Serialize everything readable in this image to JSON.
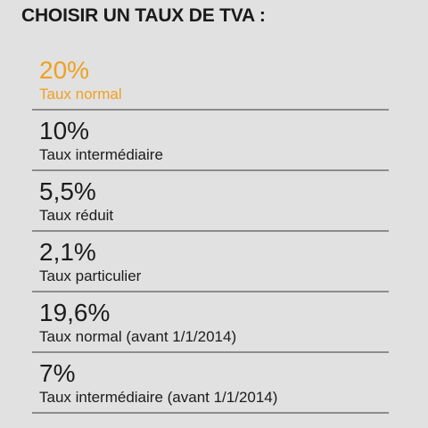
{
  "header": {
    "title": "CHOISIR UN TAUX DE TVA :"
  },
  "accent_color": "#f0a020",
  "rates": [
    {
      "value": "20%",
      "label": "Taux normal",
      "selected": true
    },
    {
      "value": "10%",
      "label": "Taux intermédiaire",
      "selected": false
    },
    {
      "value": "5,5%",
      "label": "Taux réduit",
      "selected": false
    },
    {
      "value": "2,1%",
      "label": "Taux particulier",
      "selected": false
    },
    {
      "value": "19,6%",
      "label": "Taux normal (avant 1/1/2014)",
      "selected": false
    },
    {
      "value": "7%",
      "label": "Taux intermédiaire (avant 1/1/2014)",
      "selected": false
    }
  ]
}
